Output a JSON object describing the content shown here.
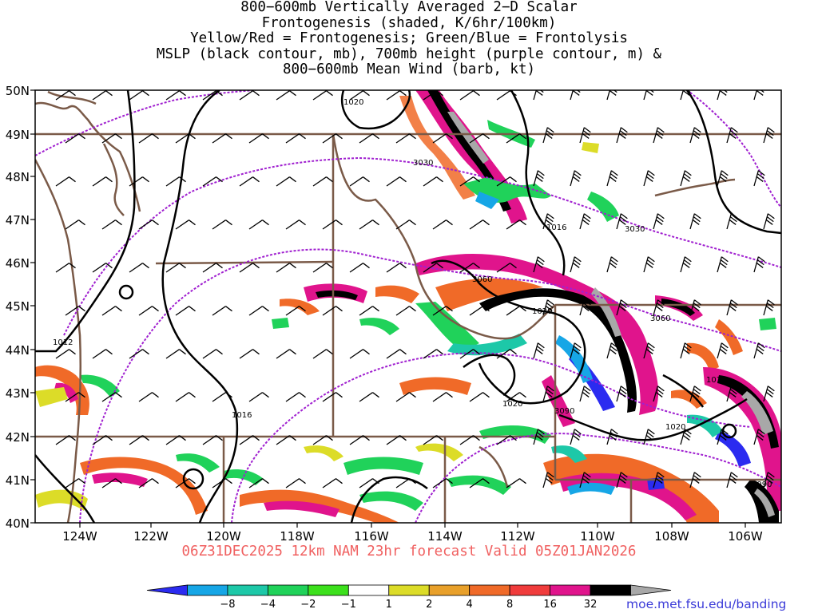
{
  "title_lines": [
    "800−600mb Vertically Averaged 2−D Scalar",
    "Frontogenesis (shaded, K/6hr/100km)",
    "Yellow/Red = Frontogenesis;  Green/Blue = Frontolysis",
    "MSLP (black contour, mb), 700mb height (purple contour, m) &",
    "800−600mb Mean Wind (barb, kt)"
  ],
  "map": {
    "lat_labels": [
      "50N",
      "49N",
      "48N",
      "47N",
      "46N",
      "45N",
      "44N",
      "43N",
      "42N",
      "41N",
      "40N"
    ],
    "lon_labels": [
      "124W",
      "122W",
      "120W",
      "118W",
      "116W",
      "114W",
      "112W",
      "110W",
      "108W",
      "106W"
    ],
    "mslp_labels": [
      "1020",
      "1016",
      "1020",
      "1012",
      "1016",
      "1020",
      "1016",
      "1020"
    ],
    "height_labels": [
      "3030",
      "3030",
      "3060",
      "3060",
      "3090",
      "3090"
    ]
  },
  "caption": "06Z31DEC2025 12km NAM 23hr forecast Valid 05Z01JAN2026",
  "colorbar": {
    "labels": [
      "−8",
      "−4",
      "−2",
      "−1",
      "1",
      "2",
      "4",
      "8",
      "16",
      "32"
    ],
    "colors": [
      "#2b2bf0",
      "#16a6e6",
      "#1dc8a8",
      "#20d25a",
      "#3ce01c",
      "#ffffff",
      "#dcdc28",
      "#e8a02a",
      "#f06a28",
      "#f03c3c",
      "#e0148c",
      "#000000",
      "#a8a8a8"
    ]
  },
  "credit": "moe.met.fsu.edu/banding"
}
